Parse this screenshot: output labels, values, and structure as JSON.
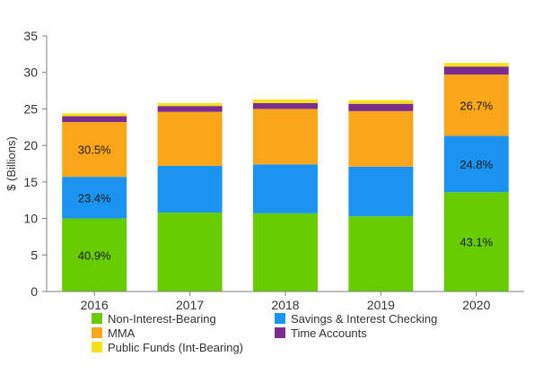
{
  "chart_data": {
    "type": "bar",
    "stacked": true,
    "title": "",
    "xlabel": "",
    "ylabel": "$ (Billions)",
    "ylim": [
      0,
      35
    ],
    "yticks": [
      0,
      5,
      10,
      15,
      20,
      25,
      30,
      35
    ],
    "grid": false,
    "legend_position": "bottom",
    "categories": [
      "2016",
      "2017",
      "2018",
      "2019",
      "2020"
    ],
    "series": [
      {
        "name": "Non-Interest-Bearing",
        "color": "#66cc00",
        "values": [
          10.0,
          10.8,
          10.7,
          10.3,
          13.6
        ],
        "labels": [
          "40.9%",
          "",
          "",
          "",
          "43.1%"
        ]
      },
      {
        "name": "Savings & Interest Checking",
        "color": "#1a94f0",
        "values": [
          5.7,
          6.4,
          6.7,
          6.8,
          7.7
        ],
        "labels": [
          "23.4%",
          "",
          "",
          "",
          "24.8%"
        ]
      },
      {
        "name": "MMA",
        "color": "#f9a61a",
        "values": [
          7.5,
          7.4,
          7.6,
          7.6,
          8.4
        ],
        "labels": [
          "30.5%",
          "",
          "",
          "",
          "26.7%"
        ]
      },
      {
        "name": "Time Accounts",
        "color": "#7b2d8e",
        "values": [
          0.8,
          0.8,
          0.8,
          1.0,
          1.1
        ],
        "labels": [
          "",
          "",
          "",
          "",
          ""
        ]
      },
      {
        "name": "Public Funds (Int-Bearing)",
        "color": "#f5e01a",
        "values": [
          0.4,
          0.4,
          0.5,
          0.5,
          0.5
        ],
        "labels": [
          "",
          "",
          "",
          "",
          ""
        ]
      }
    ]
  }
}
